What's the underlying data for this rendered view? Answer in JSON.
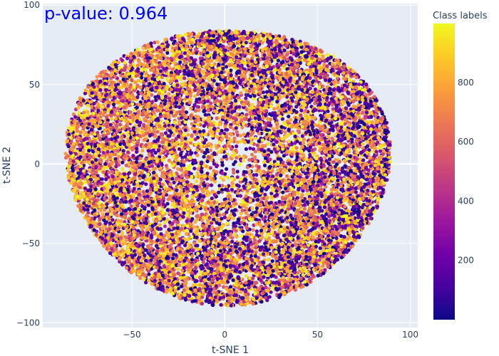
{
  "chart_data": {
    "type": "scatter",
    "title": "",
    "xlabel": "t-SNE 1",
    "ylabel": "t-SNE 2",
    "xlim": [
      -98,
      104
    ],
    "ylim": [
      -103,
      101
    ],
    "x_ticks": [
      -50,
      0,
      50,
      100
    ],
    "y_ticks": [
      -100,
      -50,
      0,
      50,
      100
    ],
    "x_tick_labels": [
      "−50",
      "0",
      "50",
      "100"
    ],
    "y_tick_labels": [
      "−100",
      "−50",
      "0",
      "50",
      "100"
    ],
    "grid": true,
    "annotation": "p-value: 0.964",
    "colorbar": {
      "title": "Class labels",
      "range": [
        0,
        999
      ],
      "ticks": [
        200,
        400,
        600,
        800
      ],
      "tick_labels": [
        "200",
        "400",
        "600",
        "800"
      ],
      "colorscale": "plasma"
    },
    "cloud": {
      "shape": "roughly circular blob",
      "center": [
        0,
        0
      ],
      "x_extent": [
        -88,
        92
      ],
      "y_extent": [
        -90,
        89
      ],
      "point_count_approx": 12000,
      "color_value_range": [
        0,
        999
      ]
    }
  },
  "colors": {
    "plot_background": "#e5ecf6",
    "grid": "#ffffff",
    "annotation": "#0000ff",
    "text": "#2a3f5f"
  }
}
